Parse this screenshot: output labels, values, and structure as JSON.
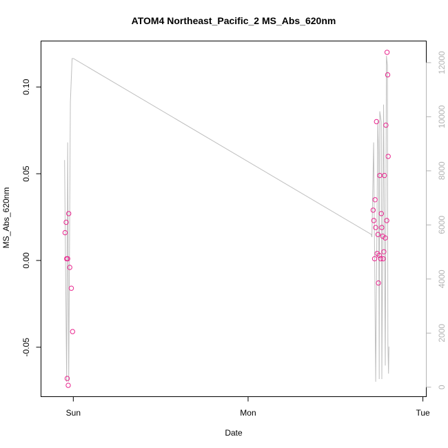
{
  "chart_data": {
    "type": "scatter",
    "title": "ATOM4 Northeast_Pacific_2 MS_Abs_620nm",
    "xlabel": "Date",
    "ylabel": "MS_Abs_620nm",
    "x_axis": {
      "kind": "date",
      "range": [
        "2016-06-04T19:34",
        "2016-06-07T00:28"
      ],
      "ticks": [
        {
          "label": "Sun",
          "value": "2016-06-05T00:00"
        },
        {
          "label": "Mon",
          "value": "2016-06-06T00:00"
        },
        {
          "label": "Tue",
          "value": "2016-06-07T00:00"
        }
      ]
    },
    "y_left": {
      "range": [
        -0.0785,
        0.1265
      ],
      "ticks": [
        -0.05,
        0.0,
        0.05,
        0.1
      ],
      "tick_labels": [
        "-0.05",
        "0.00",
        "0.05",
        "0.10"
      ]
    },
    "y_right": {
      "range": [
        -350,
        12800
      ],
      "ticks": [
        0,
        2000,
        4000,
        6000,
        8000,
        10000,
        12000
      ],
      "tick_labels": [
        "0",
        "2000",
        "4000",
        "6000",
        "8000",
        "10000",
        "12000"
      ]
    },
    "grid": false,
    "legend": "none",
    "colors": {
      "points": "#e8268e",
      "line": "#bebebe",
      "right_axis": "#b3b3b3"
    },
    "series": [
      {
        "type": "scatter",
        "axis": "left",
        "points": [
          {
            "x": "2016-06-04T22:52",
            "y": 0.016
          },
          {
            "x": "2016-06-04T23:01",
            "y": 0.022
          },
          {
            "x": "2016-06-04T23:05",
            "y": 0.001
          },
          {
            "x": "2016-06-04T23:10",
            "y": -0.068
          },
          {
            "x": "2016-06-04T23:14",
            "y": 0.001
          },
          {
            "x": "2016-06-04T23:18",
            "y": -0.072
          },
          {
            "x": "2016-06-04T23:22",
            "y": 0.027
          },
          {
            "x": "2016-06-04T23:31",
            "y": -0.004
          },
          {
            "x": "2016-06-04T23:44",
            "y": -0.016
          },
          {
            "x": "2016-06-04T23:54",
            "y": -0.041
          },
          {
            "x": "2016-06-06T17:10",
            "y": 0.029
          },
          {
            "x": "2016-06-06T17:16",
            "y": 0.023
          },
          {
            "x": "2016-06-06T17:22",
            "y": 0.001
          },
          {
            "x": "2016-06-06T17:26",
            "y": 0.035
          },
          {
            "x": "2016-06-06T17:31",
            "y": 0.019
          },
          {
            "x": "2016-06-06T17:38",
            "y": 0.08
          },
          {
            "x": "2016-06-06T17:43",
            "y": 0.004
          },
          {
            "x": "2016-06-06T17:50",
            "y": 0.015
          },
          {
            "x": "2016-06-06T17:54",
            "y": -0.013
          },
          {
            "x": "2016-06-06T18:00",
            "y": 0.003
          },
          {
            "x": "2016-06-06T18:05",
            "y": 0.049
          },
          {
            "x": "2016-06-06T18:12",
            "y": 0.001
          },
          {
            "x": "2016-06-06T18:17",
            "y": 0.027
          },
          {
            "x": "2016-06-06T18:22",
            "y": 0.019
          },
          {
            "x": "2016-06-06T18:29",
            "y": 0.014
          },
          {
            "x": "2016-06-06T18:33",
            "y": 0.001
          },
          {
            "x": "2016-06-06T18:38",
            "y": 0.005
          },
          {
            "x": "2016-06-06T18:43",
            "y": 0.049
          },
          {
            "x": "2016-06-06T18:50",
            "y": 0.013
          },
          {
            "x": "2016-06-06T18:55",
            "y": 0.078
          },
          {
            "x": "2016-06-06T19:02",
            "y": 0.023
          },
          {
            "x": "2016-06-06T19:05",
            "y": 0.12
          },
          {
            "x": "2016-06-06T19:10",
            "y": 0.107
          },
          {
            "x": "2016-06-06T19:14",
            "y": 0.06
          }
        ]
      },
      {
        "type": "line",
        "axis": "right",
        "points": [
          {
            "x": "2016-06-04T22:48",
            "y": 8400
          },
          {
            "x": "2016-06-04T23:05",
            "y": 200
          },
          {
            "x": "2016-06-04T23:14",
            "y": 9050
          },
          {
            "x": "2016-06-04T23:22",
            "y": 200
          },
          {
            "x": "2016-06-04T23:36",
            "y": 10550
          },
          {
            "x": "2016-06-04T23:50",
            "y": 12150
          },
          {
            "x": "2016-06-05T00:02",
            "y": 12150
          },
          {
            "x": "2016-06-06T16:55",
            "y": 5650
          },
          {
            "x": "2016-06-06T17:00",
            "y": 5550
          },
          {
            "x": "2016-06-06T17:14",
            "y": 9050
          },
          {
            "x": "2016-06-06T17:31",
            "y": 200
          },
          {
            "x": "2016-06-06T17:48",
            "y": 9850
          },
          {
            "x": "2016-06-06T17:55",
            "y": 8650
          },
          {
            "x": "2016-06-06T18:00",
            "y": 300
          },
          {
            "x": "2016-06-06T18:05",
            "y": 10200
          },
          {
            "x": "2016-06-06T18:17",
            "y": 9800
          },
          {
            "x": "2016-06-06T18:22",
            "y": 300
          },
          {
            "x": "2016-06-06T18:36",
            "y": 10450
          },
          {
            "x": "2016-06-06T18:50",
            "y": 800
          },
          {
            "x": "2016-06-06T19:00",
            "y": 12250
          },
          {
            "x": "2016-06-06T19:08",
            "y": 11900
          },
          {
            "x": "2016-06-06T19:12",
            "y": 1600
          },
          {
            "x": "2016-06-06T19:17",
            "y": 500
          },
          {
            "x": "2016-06-06T19:20",
            "y": 1500
          }
        ]
      }
    ]
  }
}
